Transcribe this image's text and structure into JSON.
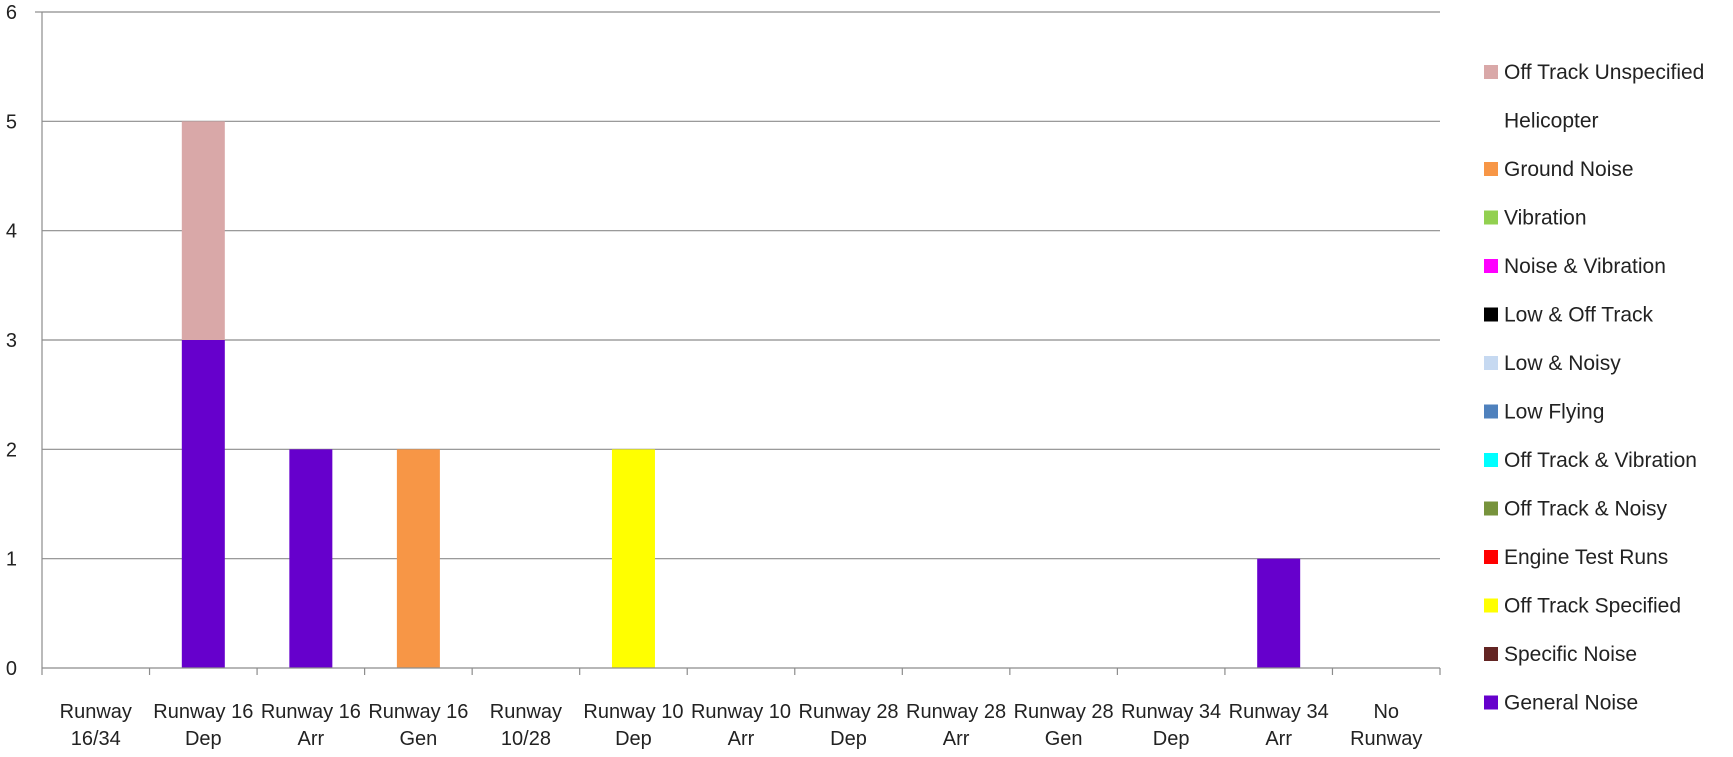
{
  "chart_data": {
    "type": "bar",
    "stacked": true,
    "title": "",
    "xlabel": "",
    "ylabel": "",
    "ylim": [
      0,
      6
    ],
    "yticks": [
      0,
      1,
      2,
      3,
      4,
      5,
      6
    ],
    "grid": true,
    "legend_position": "right",
    "categories": [
      "Runway 16/34",
      "Runway 16 Dep",
      "Runway 16 Arr",
      "Runway 16 Gen",
      "Runway 10/28",
      "Runway 10 Dep",
      "Runway 10 Arr",
      "Runway 28 Dep",
      "Runway 28 Arr",
      "Runway 28 Gen",
      "Runway 34 Dep",
      "Runway 34 Arr",
      "No Runway"
    ],
    "series": [
      {
        "name": "General Noise",
        "color": "#6600CC",
        "values": [
          0,
          3,
          2,
          0,
          0,
          0,
          0,
          0,
          0,
          0,
          0,
          1,
          0
        ]
      },
      {
        "name": "Specific Noise",
        "color": "#632523",
        "values": [
          0,
          0,
          0,
          0,
          0,
          0,
          0,
          0,
          0,
          0,
          0,
          0,
          0
        ]
      },
      {
        "name": "Off Track Specified",
        "color": "#FFFF00",
        "values": [
          0,
          0,
          0,
          0,
          0,
          2,
          0,
          0,
          0,
          0,
          0,
          0,
          0
        ]
      },
      {
        "name": "Engine Test Runs",
        "color": "#FF0000",
        "values": [
          0,
          0,
          0,
          0,
          0,
          0,
          0,
          0,
          0,
          0,
          0,
          0,
          0
        ]
      },
      {
        "name": "Off Track & Noisy",
        "color": "#77933C",
        "values": [
          0,
          0,
          0,
          0,
          0,
          0,
          0,
          0,
          0,
          0,
          0,
          0,
          0
        ]
      },
      {
        "name": "Off Track & Vibration",
        "color": "#00FFFF",
        "values": [
          0,
          0,
          0,
          0,
          0,
          0,
          0,
          0,
          0,
          0,
          0,
          0,
          0
        ]
      },
      {
        "name": "Low Flying",
        "color": "#4F81BD",
        "values": [
          0,
          0,
          0,
          0,
          0,
          0,
          0,
          0,
          0,
          0,
          0,
          0,
          0
        ]
      },
      {
        "name": "Low & Noisy",
        "color": "#C6D9F1",
        "values": [
          0,
          0,
          0,
          0,
          0,
          0,
          0,
          0,
          0,
          0,
          0,
          0,
          0
        ]
      },
      {
        "name": "Low & Off Track",
        "color": "#000000",
        "values": [
          0,
          0,
          0,
          0,
          0,
          0,
          0,
          0,
          0,
          0,
          0,
          0,
          0
        ]
      },
      {
        "name": "Noise & Vibration",
        "color": "#FF00FF",
        "values": [
          0,
          0,
          0,
          0,
          0,
          0,
          0,
          0,
          0,
          0,
          0,
          0,
          0
        ]
      },
      {
        "name": "Vibration",
        "color": "#92D050",
        "values": [
          0,
          0,
          0,
          0,
          0,
          0,
          0,
          0,
          0,
          0,
          0,
          0,
          0
        ]
      },
      {
        "name": "Ground Noise",
        "color": "#F79646",
        "values": [
          0,
          0,
          0,
          2,
          0,
          0,
          0,
          0,
          0,
          0,
          0,
          0,
          0
        ]
      },
      {
        "name": "Helicopter",
        "color": "#FFFFFF",
        "values": [
          0,
          0,
          0,
          0,
          0,
          0,
          0,
          0,
          0,
          0,
          0,
          0,
          0
        ]
      },
      {
        "name": "Off Track Unspecified",
        "color": "#D9A8A8",
        "values": [
          0,
          2,
          0,
          0,
          0,
          0,
          0,
          0,
          0,
          0,
          0,
          0,
          0
        ]
      }
    ],
    "legend_order": [
      "Off Track Unspecified",
      "Helicopter",
      "Ground Noise",
      "Vibration",
      "Noise & Vibration",
      "Low & Off Track",
      "Low & Noisy",
      "Low Flying",
      "Off Track & Vibration",
      "Off Track & Noisy",
      "Engine Test Runs",
      "Off Track Specified",
      "Specific Noise",
      "General Noise"
    ]
  }
}
